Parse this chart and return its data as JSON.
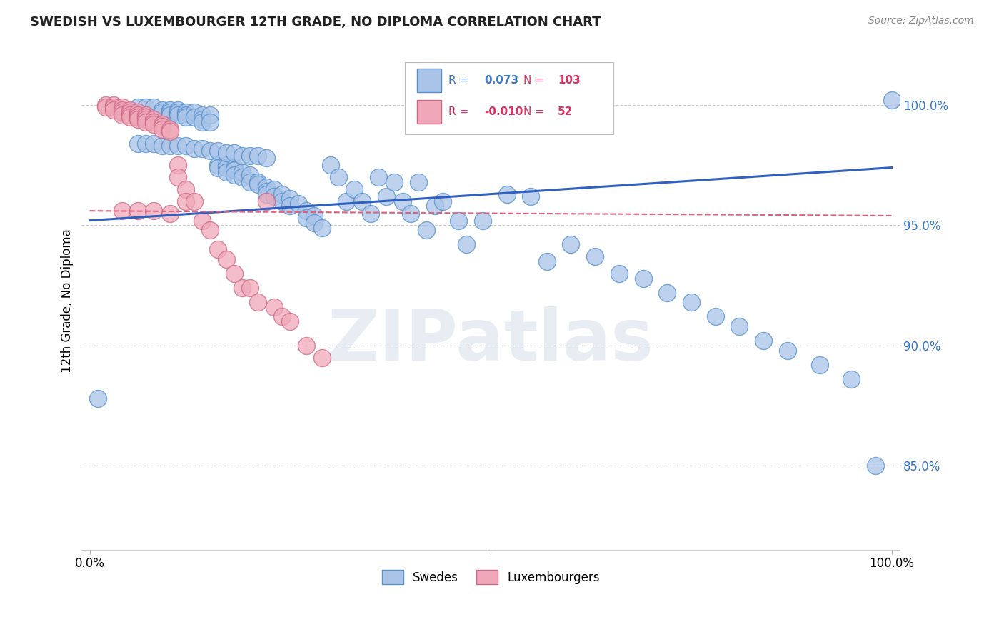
{
  "title": "SWEDISH VS LUXEMBOURGER 12TH GRADE, NO DIPLOMA CORRELATION CHART",
  "source": "Source: ZipAtlas.com",
  "ylabel": "12th Grade, No Diploma",
  "legend_blue_r": "0.073",
  "legend_blue_n": "103",
  "legend_pink_r": "-0.010",
  "legend_pink_n": "52",
  "legend_label_blue": "Swedes",
  "legend_label_pink": "Luxembourgers",
  "watermark": "ZIPatlas",
  "y_tick_labels": [
    "85.0%",
    "90.0%",
    "95.0%",
    "100.0%"
  ],
  "y_tick_values": [
    0.85,
    0.9,
    0.95,
    1.0
  ],
  "xlim": [
    -0.01,
    1.01
  ],
  "ylim": [
    0.815,
    1.022
  ],
  "blue_line_color": "#3060c0",
  "pink_line_color": "#e06080",
  "grid_color": "#cccccc",
  "blue_fill": "#aac4e8",
  "blue_edge": "#5590cc",
  "pink_fill": "#f0a8b8",
  "pink_edge": "#cc6888",
  "blue_line_y0": 0.952,
  "blue_line_y1": 0.974,
  "pink_line_y0": 0.956,
  "pink_line_y1": 0.954,
  "blue_points_x": [
    0.06,
    0.07,
    0.08,
    0.09,
    0.09,
    0.1,
    0.1,
    0.1,
    0.11,
    0.11,
    0.11,
    0.12,
    0.12,
    0.12,
    0.13,
    0.13,
    0.14,
    0.14,
    0.14,
    0.15,
    0.15,
    0.16,
    0.16,
    0.17,
    0.17,
    0.17,
    0.18,
    0.18,
    0.18,
    0.19,
    0.19,
    0.2,
    0.2,
    0.21,
    0.21,
    0.22,
    0.22,
    0.22,
    0.23,
    0.23,
    0.24,
    0.24,
    0.25,
    0.25,
    0.26,
    0.27,
    0.27,
    0.28,
    0.28,
    0.29,
    0.3,
    0.31,
    0.32,
    0.33,
    0.34,
    0.35,
    0.36,
    0.37,
    0.38,
    0.39,
    0.4,
    0.41,
    0.42,
    0.43,
    0.44,
    0.46,
    0.47,
    0.49,
    0.52,
    0.55,
    0.57,
    0.6,
    0.63,
    0.66,
    0.69,
    0.72,
    0.75,
    0.78,
    0.81,
    0.84,
    0.87,
    0.91,
    0.95,
    0.98,
    1.0,
    0.06,
    0.07,
    0.08,
    0.09,
    0.1,
    0.11,
    0.12,
    0.13,
    0.14,
    0.15,
    0.16,
    0.17,
    0.18,
    0.19,
    0.2,
    0.21,
    0.22,
    0.01
  ],
  "blue_points_y": [
    0.999,
    0.999,
    0.999,
    0.998,
    0.997,
    0.998,
    0.997,
    0.996,
    0.998,
    0.997,
    0.996,
    0.997,
    0.996,
    0.995,
    0.997,
    0.995,
    0.996,
    0.994,
    0.993,
    0.996,
    0.993,
    0.975,
    0.974,
    0.975,
    0.974,
    0.972,
    0.974,
    0.973,
    0.971,
    0.972,
    0.97,
    0.971,
    0.968,
    0.968,
    0.967,
    0.966,
    0.964,
    0.963,
    0.965,
    0.962,
    0.963,
    0.96,
    0.961,
    0.958,
    0.959,
    0.956,
    0.953,
    0.954,
    0.951,
    0.949,
    0.975,
    0.97,
    0.96,
    0.965,
    0.96,
    0.955,
    0.97,
    0.962,
    0.968,
    0.96,
    0.955,
    0.968,
    0.948,
    0.958,
    0.96,
    0.952,
    0.942,
    0.952,
    0.963,
    0.962,
    0.935,
    0.942,
    0.937,
    0.93,
    0.928,
    0.922,
    0.918,
    0.912,
    0.908,
    0.902,
    0.898,
    0.892,
    0.886,
    0.85,
    1.002,
    0.984,
    0.984,
    0.984,
    0.983,
    0.983,
    0.983,
    0.983,
    0.982,
    0.982,
    0.981,
    0.981,
    0.98,
    0.98,
    0.979,
    0.979,
    0.979,
    0.978,
    0.878
  ],
  "pink_points_x": [
    0.02,
    0.02,
    0.03,
    0.03,
    0.03,
    0.04,
    0.04,
    0.04,
    0.04,
    0.05,
    0.05,
    0.05,
    0.05,
    0.06,
    0.06,
    0.06,
    0.06,
    0.07,
    0.07,
    0.07,
    0.07,
    0.08,
    0.08,
    0.08,
    0.09,
    0.09,
    0.09,
    0.1,
    0.1,
    0.11,
    0.11,
    0.12,
    0.12,
    0.13,
    0.14,
    0.15,
    0.16,
    0.17,
    0.18,
    0.19,
    0.2,
    0.21,
    0.22,
    0.23,
    0.24,
    0.25,
    0.27,
    0.29,
    0.04,
    0.06,
    0.08,
    0.1
  ],
  "pink_points_y": [
    1.0,
    0.999,
    1.0,
    0.999,
    0.998,
    0.999,
    0.998,
    0.997,
    0.996,
    0.998,
    0.997,
    0.996,
    0.995,
    0.997,
    0.996,
    0.995,
    0.994,
    0.996,
    0.995,
    0.994,
    0.993,
    0.994,
    0.993,
    0.992,
    0.992,
    0.991,
    0.99,
    0.99,
    0.989,
    0.975,
    0.97,
    0.965,
    0.96,
    0.96,
    0.952,
    0.948,
    0.94,
    0.936,
    0.93,
    0.924,
    0.924,
    0.918,
    0.96,
    0.916,
    0.912,
    0.91,
    0.9,
    0.895,
    0.956,
    0.956,
    0.956,
    0.955
  ]
}
